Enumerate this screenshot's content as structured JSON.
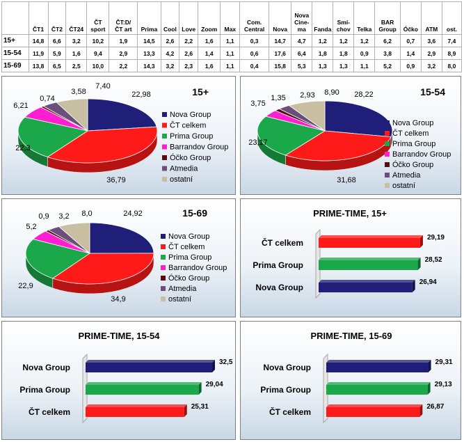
{
  "table": {
    "headers": [
      "",
      "ČT1",
      "ČT2",
      "ČT24",
      "ČT\nsport",
      "ČT:D/\nČT art",
      "Prima",
      "Cool",
      "Love",
      "Zoom",
      "Max",
      "Com.\nCentral",
      "Nova",
      "Nova\nCine-\nma",
      "Fanda",
      "Smí-\nchov",
      "Telka",
      "BAR\nGroup",
      "Óčko",
      "ATM",
      "ost."
    ],
    "rows": [
      [
        "15+",
        "14,8",
        "6,6",
        "3,2",
        "10,2",
        "1,9",
        "14,5",
        "2,6",
        "2,2",
        "1,6",
        "1,1",
        "0,3",
        "14,7",
        "4,7",
        "1,2",
        "1,2",
        "1,2",
        "6,2",
        "0,7",
        "3,6",
        "7,4"
      ],
      [
        "15-54",
        "11,9",
        "5,9",
        "1,6",
        "9,4",
        "2,9",
        "13,3",
        "4,2",
        "2,6",
        "1,4",
        "1,1",
        "0,6",
        "17,6",
        "6,4",
        "1,8",
        "1,8",
        "0,9",
        "3,8",
        "1,4",
        "2,9",
        "8,9"
      ],
      [
        "15-69",
        "13,8",
        "6,5",
        "2,5",
        "10,0",
        "2,2",
        "14,3",
        "3,2",
        "2,3",
        "1,6",
        "1,1",
        "0,4",
        "15,8",
        "5,3",
        "1,3",
        "1,3",
        "1,1",
        "5,2",
        "0,9",
        "3,2",
        "8,0"
      ]
    ]
  },
  "legend": [
    "Nova Group",
    "ČT celkem",
    "Prima Group",
    "Barrandov Group",
    "Óčko Group",
    "Atmedia",
    "ostatní"
  ],
  "pie_colors": [
    "#1f1f7a",
    "#ff1a1a",
    "#1aa84a",
    "#ff1fd0",
    "#5a0a14",
    "#6b4f7a",
    "#c8bfa3"
  ],
  "bar_colors": {
    "Nova Group": "#1f1f7a",
    "ČT celkem": "#ff1a1a",
    "Prima Group": "#1aa84a"
  },
  "chart_data": [
    {
      "type": "pie",
      "title": "15+",
      "labels": [
        "Nova Group",
        "ČT celkem",
        "Prima Group",
        "Barrandov Group",
        "Óčko Group",
        "Atmedia",
        "ostatní"
      ],
      "value_labels": [
        "22,98",
        "36,79",
        "22,3",
        "6,21",
        "0,74",
        "3,58",
        "7,40"
      ],
      "values": [
        22.98,
        36.79,
        22.3,
        6.21,
        0.74,
        3.58,
        7.4
      ],
      "legend_position": "right"
    },
    {
      "type": "pie",
      "title": "15-54",
      "labels": [
        "Nova Group",
        "ČT celkem",
        "Prima Group",
        "Barrandov Group",
        "Óčko Group",
        "Atmedia",
        "ostatní"
      ],
      "value_labels": [
        "28,22",
        "31,68",
        "23,17",
        "3,75",
        "1,35",
        "2,93",
        "8,90"
      ],
      "values": [
        28.22,
        31.68,
        23.17,
        3.75,
        1.35,
        2.93,
        8.9
      ],
      "legend_position": "right"
    },
    {
      "type": "pie",
      "title": "15-69",
      "labels": [
        "Nova Group",
        "ČT celkem",
        "Prima Group",
        "Barrandov Group",
        "Óčko Group",
        "Atmedia",
        "ostatní"
      ],
      "value_labels": [
        "24,92",
        "34,9",
        "22,9",
        "5,2",
        "0,9",
        "3,2",
        "8,0"
      ],
      "values": [
        24.92,
        34.9,
        22.9,
        5.2,
        0.9,
        3.2,
        8.0
      ],
      "legend_position": "right"
    },
    {
      "type": "bar",
      "orientation": "horizontal",
      "title": "PRIME-TIME, 15+",
      "categories": [
        "ČT celkem",
        "Prima Group",
        "Nova Group"
      ],
      "value_labels": [
        "29,19",
        "28,52",
        "26,94"
      ],
      "values": [
        29.19,
        28.52,
        26.94
      ]
    },
    {
      "type": "bar",
      "orientation": "horizontal",
      "title": "PRIME-TIME, 15-54",
      "categories": [
        "Nova Group",
        "Prima Group",
        "ČT celkem"
      ],
      "value_labels": [
        "32,5",
        "29,04",
        "25,31"
      ],
      "values": [
        32.5,
        29.04,
        25.31
      ]
    },
    {
      "type": "bar",
      "orientation": "horizontal",
      "title": "PRIME-TIME, 15-69",
      "categories": [
        "Nova Group",
        "Prima Group",
        "ČT celkem"
      ],
      "value_labels": [
        "29,31",
        "29,13",
        "26,87"
      ],
      "values": [
        29.31,
        29.13,
        26.87
      ]
    }
  ]
}
